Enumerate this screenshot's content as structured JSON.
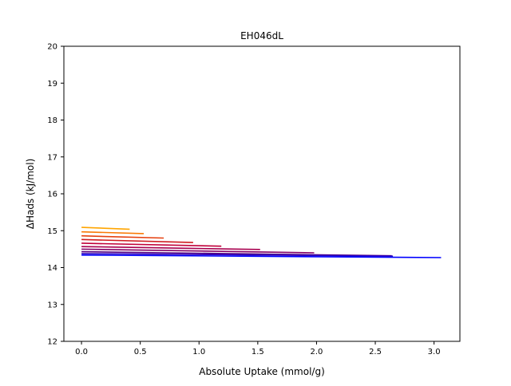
{
  "chart_data": {
    "type": "line",
    "title": "EH046dL",
    "xlabel": "Absolute Uptake (mmol/g)",
    "ylabel": "ΔHads (kJ/mol)",
    "xlim": [
      -0.15,
      3.22
    ],
    "ylim": [
      12,
      20
    ],
    "xticks": [
      0.0,
      0.5,
      1.0,
      1.5,
      2.0,
      2.5,
      3.0
    ],
    "xtick_labels": [
      "0.0",
      "0.5",
      "1.0",
      "1.5",
      "2.0",
      "2.5",
      "3.0"
    ],
    "yticks": [
      12,
      13,
      14,
      15,
      16,
      17,
      18,
      19,
      20
    ],
    "ytick_labels": [
      "12",
      "13",
      "14",
      "15",
      "16",
      "17",
      "18",
      "19",
      "20"
    ],
    "grid": false,
    "legend": "none",
    "series": [
      {
        "color": "#ffa500",
        "x": [
          0.0,
          0.41
        ],
        "y": [
          15.09,
          15.04
        ]
      },
      {
        "color": "#f97a07",
        "x": [
          0.0,
          0.53
        ],
        "y": [
          14.97,
          14.92
        ]
      },
      {
        "color": "#e5400f",
        "x": [
          0.0,
          0.7
        ],
        "y": [
          14.86,
          14.8
        ]
      },
      {
        "color": "#cf1b20",
        "x": [
          0.0,
          0.95
        ],
        "y": [
          14.76,
          14.68
        ]
      },
      {
        "color": "#c00039",
        "x": [
          0.0,
          1.19
        ],
        "y": [
          14.66,
          14.58
        ]
      },
      {
        "color": "#a8004f",
        "x": [
          0.0,
          1.52
        ],
        "y": [
          14.57,
          14.49
        ]
      },
      {
        "color": "#820066",
        "x": [
          0.0,
          1.98
        ],
        "y": [
          14.5,
          14.4
        ]
      },
      {
        "color": "#55007f",
        "x": [
          0.0,
          2.64
        ],
        "y": [
          14.43,
          14.32
        ]
      },
      {
        "color": "#2a00bf",
        "x": [
          0.0,
          2.65
        ],
        "y": [
          14.38,
          14.31
        ]
      },
      {
        "color": "#0000ff",
        "x": [
          0.0,
          3.06
        ],
        "y": [
          14.34,
          14.27
        ]
      }
    ]
  }
}
